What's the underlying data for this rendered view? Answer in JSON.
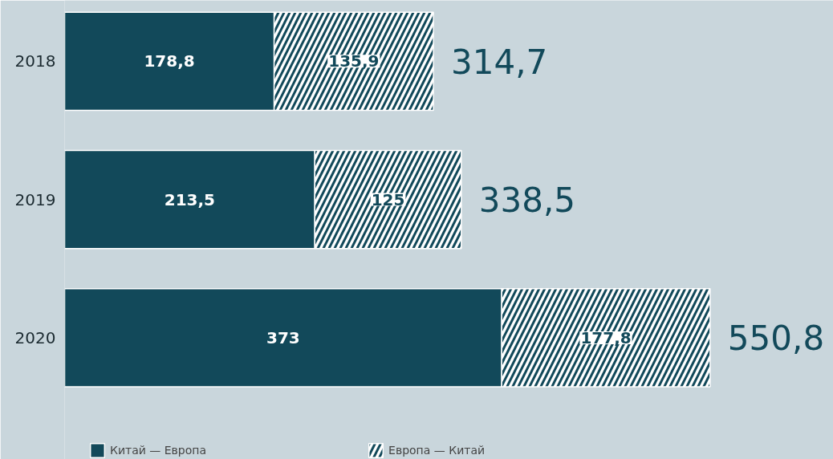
{
  "chart_data": {
    "type": "bar",
    "orientation": "horizontal",
    "stacked": true,
    "categories": [
      "2018",
      "2019",
      "2020"
    ],
    "series": [
      {
        "name": "Китай — Европа",
        "color": "#12495a",
        "values": [
          178.8,
          213.5,
          373
        ],
        "value_labels": [
          "178,8",
          "213,5",
          "373"
        ]
      },
      {
        "name": "Европа — Китай",
        "color": "#ffffff",
        "values": [
          135.9,
          125,
          177.8
        ],
        "value_labels": [
          "135,9",
          "125",
          "177,8"
        ]
      }
    ],
    "totals": [
      "314,7",
      "338,5",
      "550,8"
    ],
    "xlim": [
      0,
      656
    ],
    "legend": "bottom",
    "grid": false
  }
}
